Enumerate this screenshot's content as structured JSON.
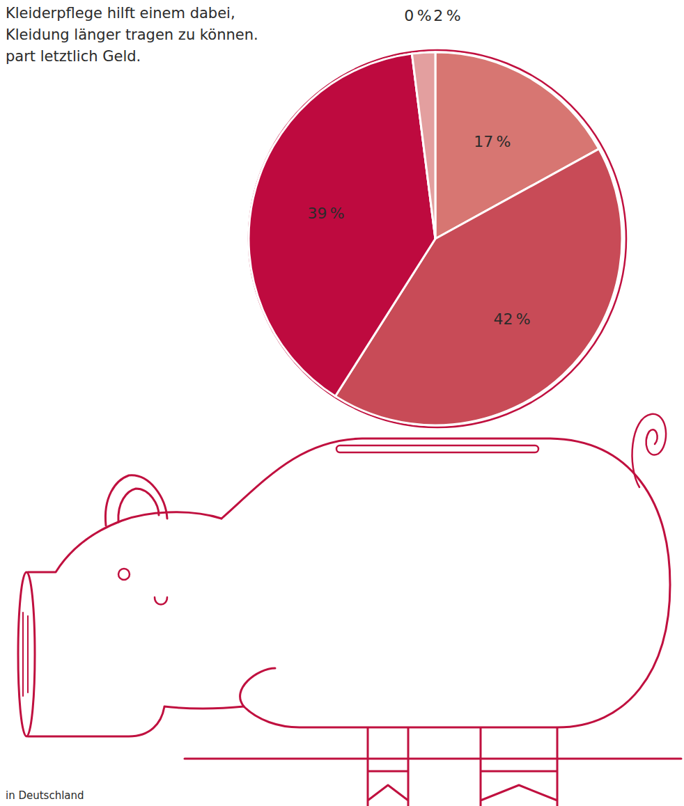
{
  "chart_data": {
    "type": "pie",
    "title": [
      "Kleiderpflege hilft einem dabei,",
      "Kleidung länger tragen zu können.",
      "part letztlich Geld."
    ],
    "source": "in Deutschland",
    "values": [
      17,
      42,
      39,
      0,
      2
    ],
    "value_labels": [
      "17 %",
      "42 %",
      "39 %",
      "0 %",
      "2 %"
    ],
    "colors": [
      "#d77672",
      "#c84b57",
      "#be0a3f",
      "#f0cccc",
      "#e39f9f"
    ],
    "data_labels": true
  }
}
